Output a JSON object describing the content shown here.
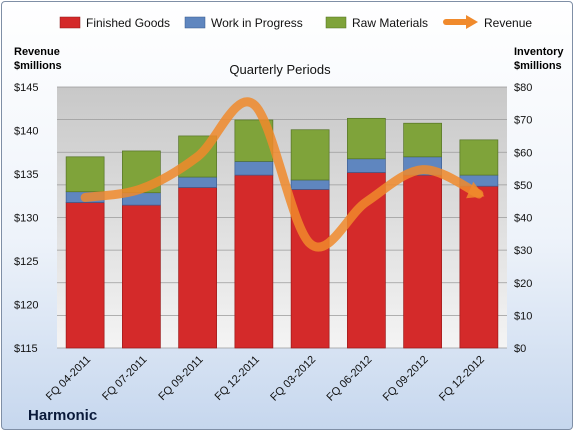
{
  "chart_data": {
    "type": "bar",
    "title": "Quarterly Periods",
    "company": "Harmonic",
    "categories": [
      "FQ 04-2011",
      "FQ 07-2011",
      "FQ 09-2011",
      "FQ 12-2011",
      "FQ 03-2012",
      "FQ 06-2012",
      "FQ 09-2012",
      "FQ 12-2012"
    ],
    "series": [
      {
        "name": "Finished Goods",
        "axis": "right",
        "stacked": true,
        "color": "#d42a2a",
        "values": [
          44.6,
          43.8,
          49.2,
          53.0,
          48.6,
          53.8,
          53.0,
          49.6
        ]
      },
      {
        "name": "Work in Progress",
        "axis": "right",
        "stacked": true,
        "color": "#5f86bf",
        "values": [
          3.3,
          3.8,
          3.2,
          4.2,
          2.9,
          4.2,
          5.6,
          3.4
        ]
      },
      {
        "name": "Raw Materials",
        "axis": "right",
        "stacked": true,
        "color": "#7fa33a",
        "values": [
          10.7,
          12.8,
          12.6,
          12.7,
          15.4,
          12.4,
          10.3,
          10.8
        ]
      },
      {
        "name": "Revenue",
        "axis": "left",
        "type": "line",
        "color": "#f08a2c",
        "values": [
          132.3,
          133.3,
          137.0,
          143.0,
          127.0,
          131.8,
          135.5,
          132.7
        ]
      }
    ],
    "left_axis": {
      "label_lines": [
        "Revenue",
        "$millions"
      ],
      "ylim": [
        115,
        145
      ],
      "ticks": [
        "$115",
        "$120",
        "$125",
        "$130",
        "$135",
        "$140",
        "$145"
      ],
      "tick_values": [
        115,
        120,
        125,
        130,
        135,
        140,
        145
      ]
    },
    "right_axis": {
      "label_lines": [
        "Inventory",
        "$millions"
      ],
      "ylim": [
        0,
        80
      ],
      "ticks": [
        "$0",
        "$10",
        "$20",
        "$30",
        "$40",
        "$50",
        "$60",
        "$70",
        "$80"
      ],
      "tick_values": [
        0,
        10,
        20,
        30,
        40,
        50,
        60,
        70,
        80
      ]
    },
    "legend_position": "top",
    "grid": "horizontal"
  }
}
